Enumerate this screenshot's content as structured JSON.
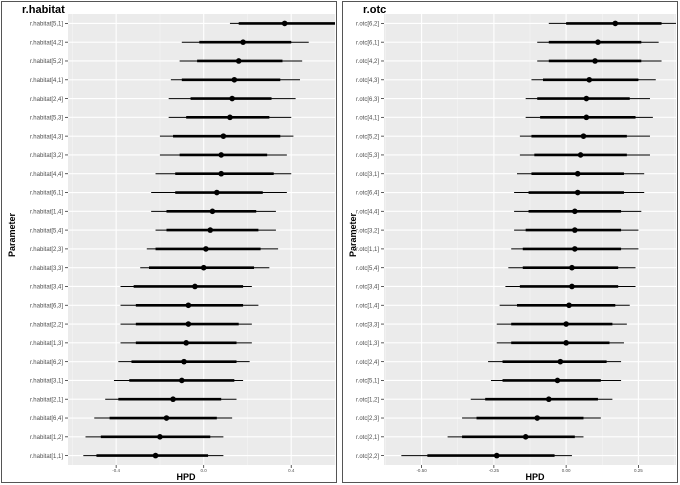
{
  "chart_data": [
    {
      "type": "forest",
      "title": "r.habitat",
      "xlabel": "HPD",
      "ylabel": "Parameter",
      "xlim": [
        -0.62,
        0.6
      ],
      "xticks": [
        -0.4,
        0.0,
        0.4
      ],
      "xtick_labels": [
        "-0.4",
        "0.0",
        "0.4"
      ],
      "grid": true,
      "colors": {
        "panel_bg": "#ebebeb",
        "grid_major": "#ffffff",
        "marks": "#000000"
      },
      "rows": [
        {
          "label": "r.habitat[5,1]",
          "estimate": 0.37,
          "inner": [
            0.16,
            0.62
          ],
          "outer": [
            0.12,
            0.7
          ]
        },
        {
          "label": "r.habitat[4,2]",
          "estimate": 0.18,
          "inner": [
            -0.02,
            0.4
          ],
          "outer": [
            -0.1,
            0.48
          ]
        },
        {
          "label": "r.habitat[5,2]",
          "estimate": 0.16,
          "inner": [
            -0.03,
            0.36
          ],
          "outer": [
            -0.11,
            0.45
          ]
        },
        {
          "label": "r.habitat[4,1]",
          "estimate": 0.14,
          "inner": [
            -0.1,
            0.35
          ],
          "outer": [
            -0.15,
            0.44
          ]
        },
        {
          "label": "r.habitat[2,4]",
          "estimate": 0.13,
          "inner": [
            -0.06,
            0.31
          ],
          "outer": [
            -0.16,
            0.42
          ]
        },
        {
          "label": "r.habitat[5,3]",
          "estimate": 0.12,
          "inner": [
            -0.08,
            0.3
          ],
          "outer": [
            -0.16,
            0.4
          ]
        },
        {
          "label": "r.habitat[4,3]",
          "estimate": 0.09,
          "inner": [
            -0.14,
            0.35
          ],
          "outer": [
            -0.2,
            0.41
          ]
        },
        {
          "label": "r.habitat[3,2]",
          "estimate": 0.08,
          "inner": [
            -0.11,
            0.29
          ],
          "outer": [
            -0.2,
            0.38
          ]
        },
        {
          "label": "r.habitat[4,4]",
          "estimate": 0.08,
          "inner": [
            -0.13,
            0.32
          ],
          "outer": [
            -0.22,
            0.4
          ]
        },
        {
          "label": "r.habitat[6,1]",
          "estimate": 0.06,
          "inner": [
            -0.13,
            0.27
          ],
          "outer": [
            -0.24,
            0.38
          ]
        },
        {
          "label": "r.habitat[1,4]",
          "estimate": 0.04,
          "inner": [
            -0.17,
            0.24
          ],
          "outer": [
            -0.24,
            0.33
          ]
        },
        {
          "label": "r.habitat[5,4]",
          "estimate": 0.03,
          "inner": [
            -0.17,
            0.25
          ],
          "outer": [
            -0.22,
            0.33
          ]
        },
        {
          "label": "r.habitat[2,3]",
          "estimate": 0.01,
          "inner": [
            -0.22,
            0.26
          ],
          "outer": [
            -0.26,
            0.34
          ]
        },
        {
          "label": "r.habitat[3,3]",
          "estimate": 0.0,
          "inner": [
            -0.25,
            0.23
          ],
          "outer": [
            -0.29,
            0.3
          ]
        },
        {
          "label": "r.habitat[3,4]",
          "estimate": -0.04,
          "inner": [
            -0.32,
            0.18
          ],
          "outer": [
            -0.38,
            0.22
          ]
        },
        {
          "label": "r.habitat[6,3]",
          "estimate": -0.07,
          "inner": [
            -0.31,
            0.18
          ],
          "outer": [
            -0.38,
            0.25
          ]
        },
        {
          "label": "r.habitat[2,2]",
          "estimate": -0.07,
          "inner": [
            -0.31,
            0.16
          ],
          "outer": [
            -0.38,
            0.22
          ]
        },
        {
          "label": "r.habitat[1,3]",
          "estimate": -0.08,
          "inner": [
            -0.31,
            0.15
          ],
          "outer": [
            -0.38,
            0.22
          ]
        },
        {
          "label": "r.habitat[6,2]",
          "estimate": -0.09,
          "inner": [
            -0.33,
            0.15
          ],
          "outer": [
            -0.39,
            0.21
          ]
        },
        {
          "label": "r.habitat[3,1]",
          "estimate": -0.1,
          "inner": [
            -0.34,
            0.14
          ],
          "outer": [
            -0.41,
            0.18
          ]
        },
        {
          "label": "r.habitat[2,1]",
          "estimate": -0.14,
          "inner": [
            -0.39,
            0.08
          ],
          "outer": [
            -0.45,
            0.15
          ]
        },
        {
          "label": "r.habitat[6,4]",
          "estimate": -0.17,
          "inner": [
            -0.43,
            0.06
          ],
          "outer": [
            -0.5,
            0.13
          ]
        },
        {
          "label": "r.habitat[1,2]",
          "estimate": -0.2,
          "inner": [
            -0.47,
            0.03
          ],
          "outer": [
            -0.54,
            0.09
          ]
        },
        {
          "label": "r.habitat[1,1]",
          "estimate": -0.22,
          "inner": [
            -0.49,
            0.02
          ],
          "outer": [
            -0.55,
            0.09
          ]
        }
      ]
    },
    {
      "type": "forest",
      "title": "r.otc",
      "xlabel": "HPD",
      "ylabel": "Parameter",
      "xlim": [
        -0.63,
        0.38
      ],
      "xticks": [
        -0.5,
        -0.25,
        0.0,
        0.25
      ],
      "xtick_labels": [
        "-0.50",
        "-0.25",
        "0.00",
        "0.25"
      ],
      "grid": true,
      "colors": {
        "panel_bg": "#ebebeb",
        "grid_major": "#ffffff",
        "marks": "#000000"
      },
      "rows": [
        {
          "label": "r.otc[6,2]",
          "estimate": 0.17,
          "inner": [
            0.0,
            0.33
          ],
          "outer": [
            -0.06,
            0.42
          ]
        },
        {
          "label": "r.otc[6,1]",
          "estimate": 0.11,
          "inner": [
            -0.06,
            0.26
          ],
          "outer": [
            -0.1,
            0.32
          ]
        },
        {
          "label": "r.otc[4,2]",
          "estimate": 0.1,
          "inner": [
            -0.06,
            0.26
          ],
          "outer": [
            -0.1,
            0.33
          ]
        },
        {
          "label": "r.otc[4,3]",
          "estimate": 0.08,
          "inner": [
            -0.08,
            0.25
          ],
          "outer": [
            -0.12,
            0.31
          ]
        },
        {
          "label": "r.otc[6,3]",
          "estimate": 0.07,
          "inner": [
            -0.1,
            0.22
          ],
          "outer": [
            -0.14,
            0.29
          ]
        },
        {
          "label": "r.otc[4,1]",
          "estimate": 0.07,
          "inner": [
            -0.09,
            0.24
          ],
          "outer": [
            -0.14,
            0.3
          ]
        },
        {
          "label": "r.otc[5,2]",
          "estimate": 0.06,
          "inner": [
            -0.12,
            0.21
          ],
          "outer": [
            -0.16,
            0.29
          ]
        },
        {
          "label": "r.otc[5,3]",
          "estimate": 0.05,
          "inner": [
            -0.11,
            0.21
          ],
          "outer": [
            -0.16,
            0.29
          ]
        },
        {
          "label": "r.otc[3,1]",
          "estimate": 0.04,
          "inner": [
            -0.12,
            0.2
          ],
          "outer": [
            -0.17,
            0.27
          ]
        },
        {
          "label": "r.otc[6,4]",
          "estimate": 0.04,
          "inner": [
            -0.13,
            0.2
          ],
          "outer": [
            -0.18,
            0.27
          ]
        },
        {
          "label": "r.otc[4,4]",
          "estimate": 0.03,
          "inner": [
            -0.13,
            0.19
          ],
          "outer": [
            -0.18,
            0.26
          ]
        },
        {
          "label": "r.otc[3,2]",
          "estimate": 0.03,
          "inner": [
            -0.14,
            0.19
          ],
          "outer": [
            -0.18,
            0.25
          ]
        },
        {
          "label": "r.otc[1,1]",
          "estimate": 0.03,
          "inner": [
            -0.15,
            0.19
          ],
          "outer": [
            -0.19,
            0.25
          ]
        },
        {
          "label": "r.otc[5,4]",
          "estimate": 0.02,
          "inner": [
            -0.15,
            0.18
          ],
          "outer": [
            -0.2,
            0.24
          ]
        },
        {
          "label": "r.otc[3,4]",
          "estimate": 0.02,
          "inner": [
            -0.16,
            0.18
          ],
          "outer": [
            -0.21,
            0.24
          ]
        },
        {
          "label": "r.otc[1,4]",
          "estimate": 0.01,
          "inner": [
            -0.17,
            0.17
          ],
          "outer": [
            -0.23,
            0.22
          ]
        },
        {
          "label": "r.otc[3,3]",
          "estimate": 0.0,
          "inner": [
            -0.19,
            0.16
          ],
          "outer": [
            -0.24,
            0.21
          ]
        },
        {
          "label": "r.otc[1,3]",
          "estimate": 0.0,
          "inner": [
            -0.19,
            0.15
          ],
          "outer": [
            -0.24,
            0.2
          ]
        },
        {
          "label": "r.otc[2,4]",
          "estimate": -0.02,
          "inner": [
            -0.22,
            0.14
          ],
          "outer": [
            -0.27,
            0.19
          ]
        },
        {
          "label": "r.otc[5,1]",
          "estimate": -0.03,
          "inner": [
            -0.22,
            0.12
          ],
          "outer": [
            -0.26,
            0.19
          ]
        },
        {
          "label": "r.otc[1,2]",
          "estimate": -0.06,
          "inner": [
            -0.28,
            0.11
          ],
          "outer": [
            -0.33,
            0.16
          ]
        },
        {
          "label": "r.otc[2,3]",
          "estimate": -0.1,
          "inner": [
            -0.31,
            0.06
          ],
          "outer": [
            -0.36,
            0.12
          ]
        },
        {
          "label": "r.otc[2,1]",
          "estimate": -0.14,
          "inner": [
            -0.36,
            0.03
          ],
          "outer": [
            -0.41,
            0.06
          ]
        },
        {
          "label": "r.otc[2,2]",
          "estimate": -0.24,
          "inner": [
            -0.48,
            -0.04
          ],
          "outer": [
            -0.57,
            0.02
          ]
        }
      ]
    }
  ]
}
